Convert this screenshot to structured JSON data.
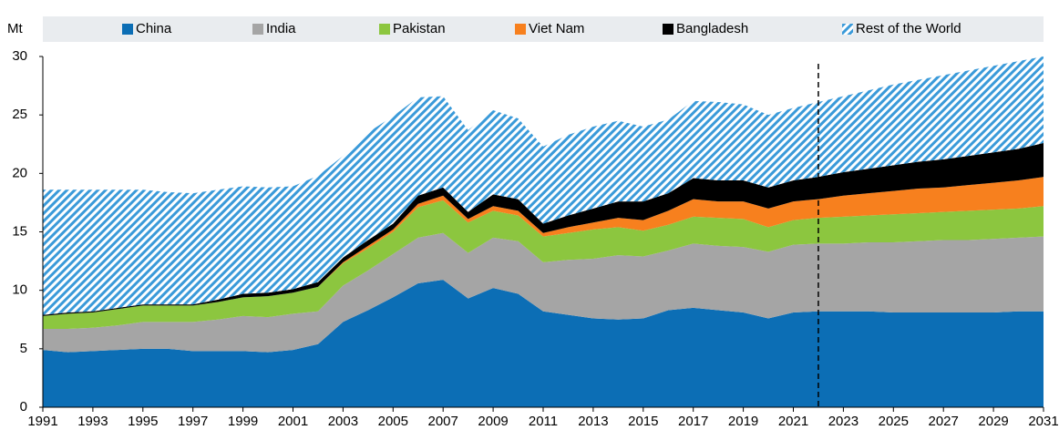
{
  "chart_data": {
    "type": "stacked_area",
    "y_label": "Mt",
    "x": [
      1991,
      1992,
      1993,
      1994,
      1995,
      1996,
      1997,
      1998,
      1999,
      2000,
      2001,
      2002,
      2003,
      2004,
      2005,
      2006,
      2007,
      2008,
      2009,
      2010,
      2011,
      2012,
      2013,
      2014,
      2015,
      2016,
      2017,
      2018,
      2019,
      2020,
      2021,
      2022,
      2023,
      2024,
      2025,
      2026,
      2027,
      2028,
      2029,
      2030,
      2031
    ],
    "series": [
      {
        "name": "China",
        "color": "#0c6eb5",
        "values": [
          4.9,
          4.7,
          4.8,
          4.9,
          5.0,
          5.0,
          4.8,
          4.8,
          4.8,
          4.7,
          4.9,
          5.4,
          7.3,
          8.3,
          9.4,
          10.6,
          10.9,
          9.3,
          10.2,
          9.7,
          8.2,
          7.9,
          7.6,
          7.5,
          7.6,
          8.3,
          8.5,
          8.3,
          8.1,
          7.6,
          8.1,
          8.2,
          8.2,
          8.2,
          8.1,
          8.1,
          8.1,
          8.1,
          8.1,
          8.2,
          8.2
        ]
      },
      {
        "name": "India",
        "color": "#a5a5a5",
        "values": [
          1.8,
          2.0,
          2.0,
          2.1,
          2.3,
          2.3,
          2.5,
          2.7,
          3.0,
          3.0,
          3.1,
          2.8,
          3.1,
          3.4,
          3.7,
          3.9,
          4.0,
          3.9,
          4.3,
          4.5,
          4.2,
          4.7,
          5.1,
          5.5,
          5.3,
          5.1,
          5.5,
          5.5,
          5.6,
          5.7,
          5.8,
          5.8,
          5.8,
          5.9,
          6.0,
          6.1,
          6.2,
          6.2,
          6.3,
          6.3,
          6.4
        ]
      },
      {
        "name": "Pakistan",
        "color": "#8cc63f",
        "values": [
          1.1,
          1.3,
          1.3,
          1.4,
          1.4,
          1.4,
          1.4,
          1.5,
          1.6,
          1.8,
          1.8,
          2.1,
          1.9,
          1.9,
          1.9,
          2.6,
          2.8,
          2.6,
          2.3,
          2.2,
          2.2,
          2.3,
          2.5,
          2.4,
          2.2,
          2.2,
          2.3,
          2.4,
          2.4,
          2.1,
          2.1,
          2.2,
          2.3,
          2.3,
          2.4,
          2.4,
          2.4,
          2.5,
          2.5,
          2.5,
          2.6
        ]
      },
      {
        "name": "Viet Nam",
        "color": "#f7801e",
        "values": [
          0,
          0,
          0,
          0,
          0,
          0,
          0,
          0,
          0,
          0,
          0,
          0,
          0.1,
          0.2,
          0.2,
          0.3,
          0.4,
          0.3,
          0.4,
          0.4,
          0.3,
          0.5,
          0.6,
          0.8,
          0.9,
          1.2,
          1.5,
          1.4,
          1.5,
          1.6,
          1.6,
          1.6,
          1.8,
          1.9,
          2.0,
          2.1,
          2.1,
          2.2,
          2.3,
          2.4,
          2.5
        ]
      },
      {
        "name": "Bangladesh",
        "color": "#000000",
        "values": [
          0.1,
          0.1,
          0.1,
          0.1,
          0.1,
          0.1,
          0.1,
          0.2,
          0.3,
          0.3,
          0.3,
          0.4,
          0.4,
          0.5,
          0.5,
          0.7,
          0.7,
          0.6,
          1.0,
          1.0,
          0.8,
          1.0,
          1.2,
          1.4,
          1.6,
          1.5,
          1.8,
          1.8,
          1.8,
          1.8,
          1.8,
          1.9,
          2.0,
          2.1,
          2.2,
          2.3,
          2.4,
          2.5,
          2.6,
          2.7,
          2.9
        ]
      },
      {
        "name": "Rest of the World",
        "color": "#3a9ad9",
        "hatched": true,
        "values": [
          10.7,
          10.5,
          10.4,
          10.1,
          9.8,
          9.6,
          9.5,
          9.4,
          9.2,
          9.0,
          8.8,
          9.1,
          8.7,
          9.2,
          9.2,
          8.4,
          7.8,
          7.0,
          7.2,
          6.9,
          6.6,
          6.9,
          7.0,
          6.9,
          6.4,
          6.3,
          6.6,
          6.7,
          6.5,
          6.2,
          6.2,
          6.4,
          6.5,
          6.7,
          6.9,
          7.0,
          7.2,
          7.3,
          7.4,
          7.5,
          7.4
        ]
      }
    ],
    "xlim": [
      1991,
      2031
    ],
    "xticks": [
      1991,
      1993,
      1995,
      1997,
      1999,
      2001,
      2003,
      2005,
      2007,
      2009,
      2011,
      2013,
      2015,
      2017,
      2019,
      2021,
      2023,
      2025,
      2027,
      2029,
      2031
    ],
    "ylim": [
      0,
      30
    ],
    "yticks": [
      0,
      5,
      10,
      15,
      20,
      25,
      30
    ],
    "vline": 2022
  }
}
